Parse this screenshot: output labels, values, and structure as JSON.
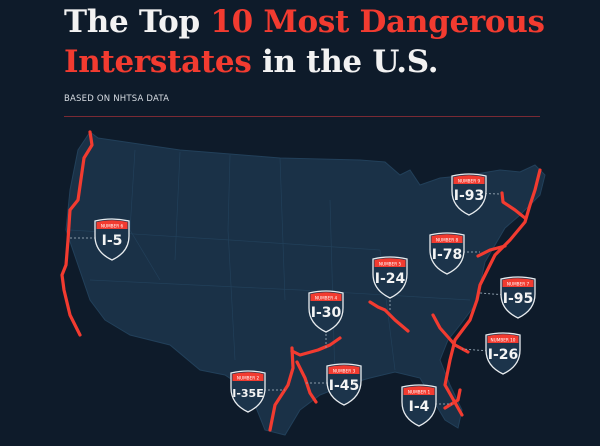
{
  "header": {
    "title_line1_white": "The Top ",
    "title_line1_red": "10 Most Dangerous",
    "title_line2_red": "Interstates",
    "title_line2_white": " in the U.S.",
    "subtitle": "BASED ON NHTSA DATA"
  },
  "colors": {
    "background": "#0e1b2a",
    "land": "#1a3147",
    "accent": "#f23b30",
    "text": "#f2f2f2"
  },
  "interstates": [
    {
      "rank_label": "NUMBER 1",
      "name": "I-4"
    },
    {
      "rank_label": "NUMBER 2",
      "name": "I-35E"
    },
    {
      "rank_label": "NUMBER 3",
      "name": "I-45"
    },
    {
      "rank_label": "NUMBER 4",
      "name": "I-30"
    },
    {
      "rank_label": "NUMBER 5",
      "name": "I-24"
    },
    {
      "rank_label": "NUMBER 6",
      "name": "I-5"
    },
    {
      "rank_label": "NUMBER 7",
      "name": "I-95"
    },
    {
      "rank_label": "NUMBER 8",
      "name": "I-78"
    },
    {
      "rank_label": "NUMBER 9",
      "name": "I-93"
    },
    {
      "rank_label": "NUMBER 10",
      "name": "I-26"
    }
  ]
}
